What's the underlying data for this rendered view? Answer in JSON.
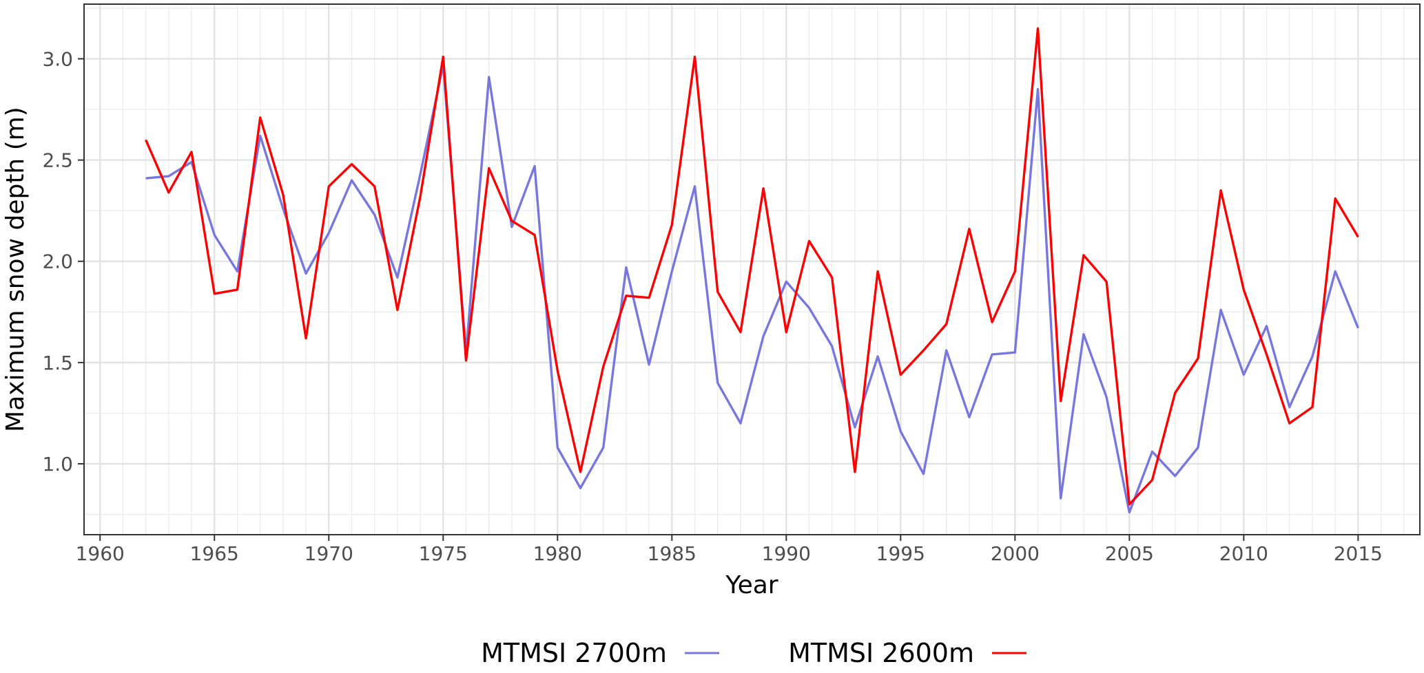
{
  "chart_data": {
    "type": "line",
    "title": "",
    "xlabel": "Year",
    "ylabel": "Maximum snow depth (m)",
    "xlim": [
      1959.3,
      2017.7
    ],
    "ylim": [
      0.65,
      3.27
    ],
    "x_ticks": [
      1960,
      1965,
      1970,
      1975,
      1980,
      1985,
      1990,
      1995,
      2000,
      2005,
      2010,
      2015
    ],
    "x_tick_labels": [
      "1960",
      "1965",
      "1970",
      "1975",
      "1980",
      "1985",
      "1990",
      "1995",
      "2000",
      "2005",
      "2010",
      "2015"
    ],
    "y_ticks": [
      1.0,
      1.5,
      2.0,
      2.5,
      3.0
    ],
    "y_tick_labels": [
      "1.0",
      "1.5",
      "2.0",
      "2.5",
      "3.0"
    ],
    "grid": true,
    "legend_position": "bottom",
    "x": [
      1962,
      1963,
      1964,
      1965,
      1966,
      1967,
      1968,
      1969,
      1970,
      1971,
      1972,
      1973,
      1974,
      1975,
      1976,
      1977,
      1978,
      1979,
      1980,
      1981,
      1982,
      1983,
      1984,
      1985,
      1986,
      1987,
      1988,
      1989,
      1990,
      1991,
      1992,
      1993,
      1994,
      1995,
      1996,
      1997,
      1998,
      1999,
      2000,
      2001,
      2002,
      2003,
      2004,
      2005,
      2006,
      2007,
      2008,
      2009,
      2010,
      2011,
      2012,
      2013,
      2014,
      2015
    ],
    "series": [
      {
        "name": "MTMSI 2700m",
        "color": "#7777dd",
        "values": [
          2.41,
          2.42,
          2.49,
          2.13,
          1.95,
          2.62,
          2.26,
          1.94,
          2.14,
          2.4,
          2.23,
          1.92,
          2.43,
          2.97,
          1.55,
          2.91,
          2.17,
          2.47,
          1.08,
          0.88,
          1.08,
          1.97,
          1.49,
          1.95,
          2.37,
          1.4,
          1.2,
          1.63,
          1.9,
          1.77,
          1.58,
          1.18,
          1.53,
          1.16,
          0.95,
          1.56,
          1.23,
          1.54,
          1.55,
          2.85,
          0.83,
          1.64,
          1.33,
          0.76,
          1.06,
          0.94,
          1.08,
          1.76,
          1.44,
          1.68,
          1.28,
          1.53,
          1.95,
          1.67
        ]
      },
      {
        "name": "MTMSI 2600m",
        "color": "#ff0000",
        "values": [
          2.6,
          2.34,
          2.54,
          1.84,
          1.86,
          2.71,
          2.33,
          1.62,
          2.37,
          2.48,
          2.37,
          1.76,
          2.32,
          3.01,
          1.51,
          2.46,
          2.2,
          2.13,
          1.46,
          0.96,
          1.48,
          1.83,
          1.82,
          2.18,
          3.01,
          1.85,
          1.65,
          2.36,
          1.65,
          2.1,
          1.92,
          0.96,
          1.95,
          1.44,
          1.56,
          1.69,
          2.16,
          1.7,
          1.95,
          3.15,
          1.31,
          2.03,
          1.9,
          0.8,
          0.92,
          1.35,
          1.52,
          2.35,
          1.86,
          1.54,
          1.2,
          1.28,
          2.31,
          2.12
        ]
      }
    ]
  }
}
